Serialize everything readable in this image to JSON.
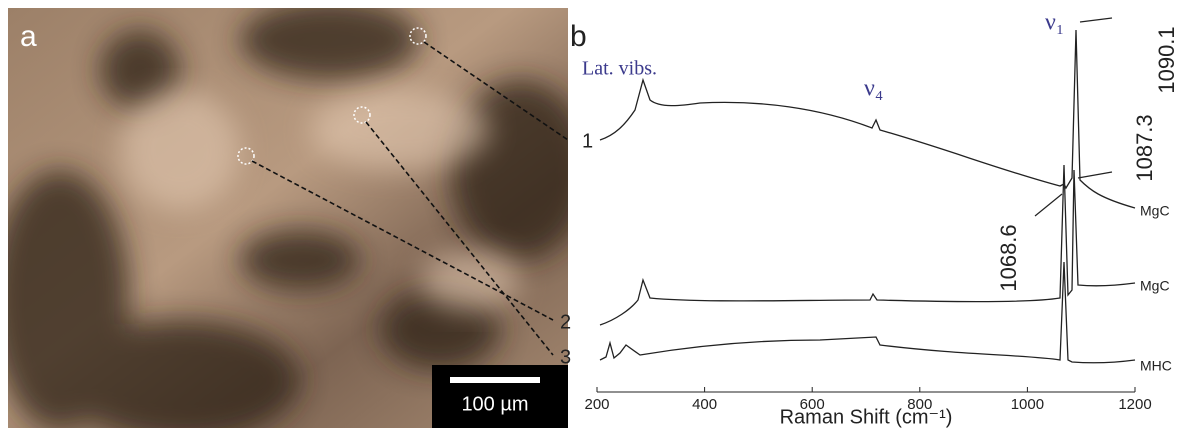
{
  "panel_a": {
    "label": "a",
    "scale_bar": "100 µm",
    "points": [
      "1",
      "2",
      "3"
    ]
  },
  "panel_b": {
    "label": "b",
    "annotations": {
      "lattice": "Lat. vibs.",
      "nu4": "ν₄",
      "nu1": "ν₁"
    },
    "peaks": [
      "1090.1",
      "1087.3",
      "1068.6"
    ],
    "spectra": [
      "MgC",
      "MgC",
      "MHC"
    ],
    "x_axis": {
      "label": "Raman Shift (cm⁻¹)",
      "lim": [
        200,
        1200
      ],
      "ticks": [
        200,
        400,
        600,
        800,
        1000,
        1200
      ]
    }
  }
}
